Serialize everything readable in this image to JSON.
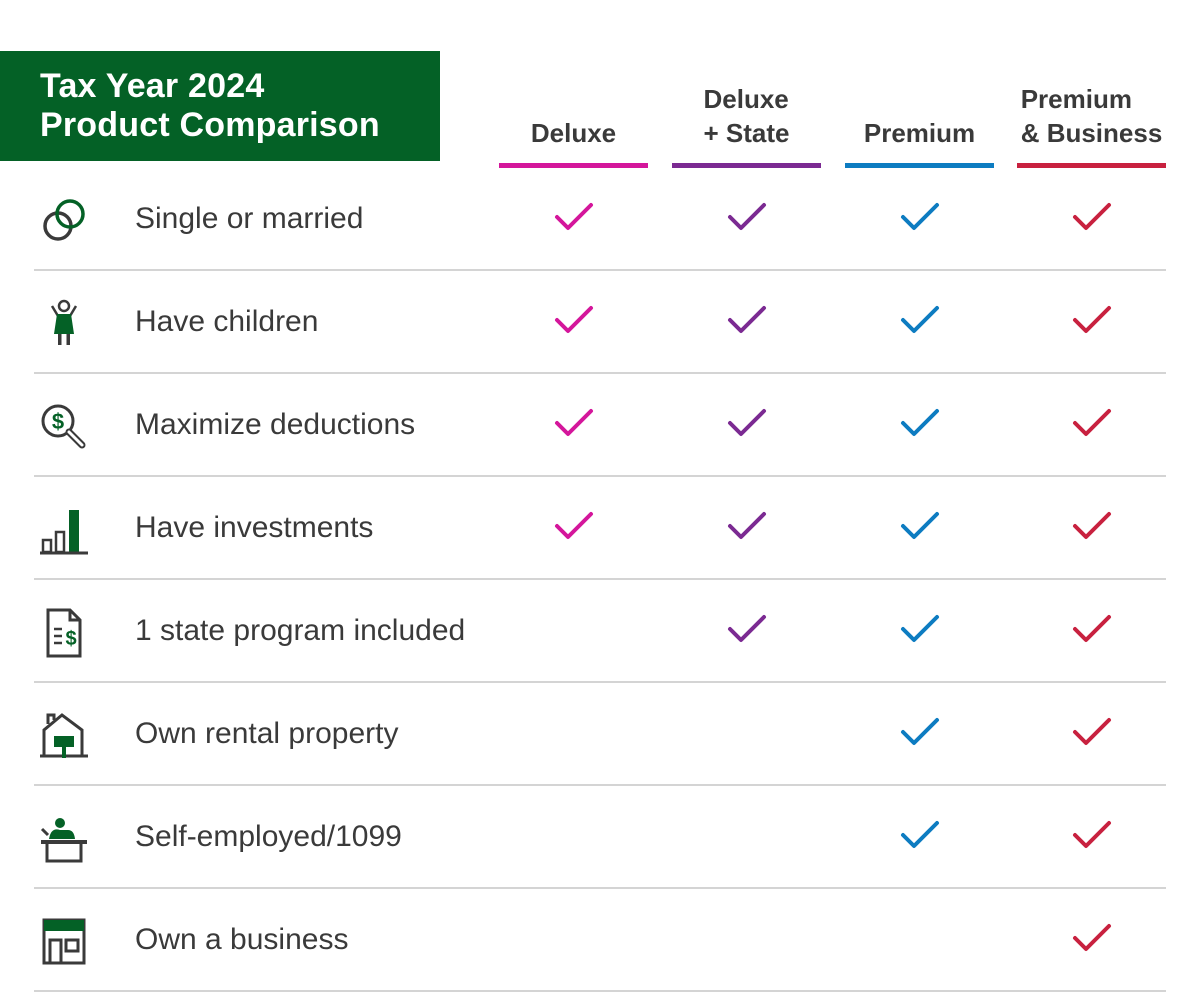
{
  "title": {
    "line1": "Tax Year 2024",
    "line2": "Product Comparison"
  },
  "columns": [
    {
      "line1": "",
      "line2": "Deluxe",
      "color": "#d4169b"
    },
    {
      "line1": "Deluxe",
      "line2": "+ State",
      "color": "#7b2a92"
    },
    {
      "line1": "",
      "line2": "Premium",
      "color": "#0d7cc1"
    },
    {
      "line1": "Premium",
      "line2": "& Business",
      "color": "#c8213f"
    }
  ],
  "rows": [
    {
      "label": "Single or married",
      "icon": "rings-icon",
      "checks": [
        true,
        true,
        true,
        true
      ]
    },
    {
      "label": "Have children",
      "icon": "child-icon",
      "checks": [
        true,
        true,
        true,
        true
      ]
    },
    {
      "label": "Maximize deductions",
      "icon": "dollar-magnifier-icon",
      "checks": [
        true,
        true,
        true,
        true
      ]
    },
    {
      "label": "Have investments",
      "icon": "bar-chart-icon",
      "checks": [
        true,
        true,
        true,
        true
      ]
    },
    {
      "label": "1 state program included",
      "icon": "tax-document-icon",
      "checks": [
        false,
        true,
        true,
        true
      ]
    },
    {
      "label": "Own rental property",
      "icon": "rental-house-icon",
      "checks": [
        false,
        false,
        true,
        true
      ]
    },
    {
      "label": "Self-employed/1099",
      "icon": "desk-worker-icon",
      "checks": [
        false,
        false,
        true,
        true
      ]
    },
    {
      "label": "Own a business",
      "icon": "storefront-icon",
      "checks": [
        false,
        false,
        false,
        true
      ]
    }
  ],
  "colors": {
    "brand_green": "#046126",
    "text": "#3a3a3a",
    "divider": "#d4d4d4"
  }
}
